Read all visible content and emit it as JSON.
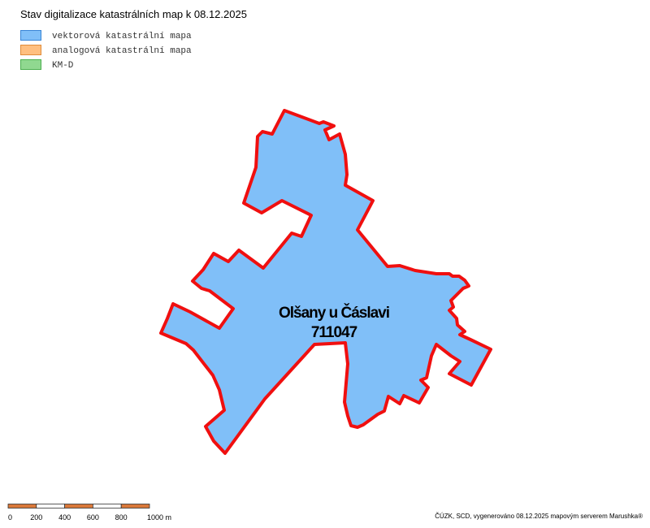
{
  "title": "Stav digitalizace katastrálních map k 08.12.2025",
  "legend": [
    {
      "label": "vektorová katastrální mapa",
      "color": "#80bff8",
      "border": "#3a86d6"
    },
    {
      "label": "analogová katastrální mapa",
      "color": "#ffbf80",
      "border": "#e08c3a"
    },
    {
      "label": "KM-D",
      "color": "#90d890",
      "border": "#4caf50"
    }
  ],
  "area": {
    "name": "Olšany u Čáslavi",
    "code": "711047"
  },
  "scale": {
    "labels": [
      "0",
      "200",
      "400",
      "600",
      "800",
      "1000 m"
    ]
  },
  "footer": "ČÚZK, SCD, vygenerováno 08.12.2025 mapovým serverem Marushka®"
}
